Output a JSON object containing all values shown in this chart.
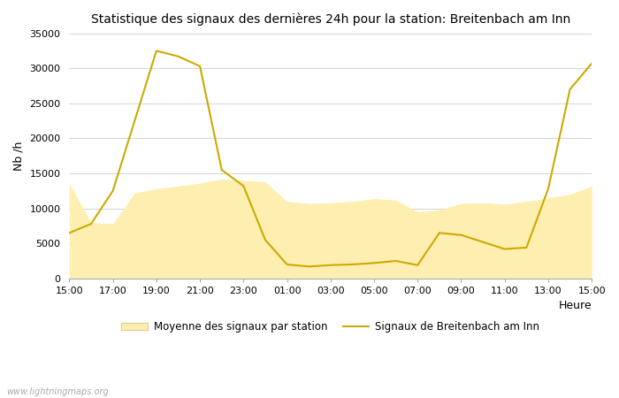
{
  "title": "Statistique des signaux des dernières 24h pour la station: Breitenbach am Inn",
  "xlabel": "Heure",
  "ylabel": "Nb /h",
  "ylim": [
    0,
    35000
  ],
  "yticks": [
    0,
    5000,
    10000,
    15000,
    20000,
    25000,
    30000,
    35000
  ],
  "background_color": "#ffffff",
  "watermark": "www.lightningmaps.org",
  "legend_avg": "Moyenne des signaux par station",
  "legend_station": "Signaux de Breitenbach am Inn",
  "fill_color": "#feeeb0",
  "line_color": "#ccaa00",
  "x_labels": [
    "15:00",
    "17:00",
    "19:00",
    "21:00",
    "23:00",
    "01:00",
    "03:00",
    "05:00",
    "07:00",
    "09:00",
    "11:00",
    "13:00",
    "15:00"
  ],
  "hours_from_15": [
    0,
    1,
    2,
    3,
    4,
    5,
    6,
    7,
    8,
    9,
    10,
    11,
    12,
    13,
    14,
    15,
    16,
    17,
    18,
    19,
    20,
    21,
    22,
    23,
    24
  ],
  "station_y": [
    6500,
    7800,
    12500,
    22500,
    32500,
    31700,
    30300,
    15500,
    13200,
    5500,
    2000,
    1700,
    1900,
    2000,
    2200,
    2500,
    1900,
    6500,
    6200,
    5200,
    4200,
    4400,
    12800,
    27000,
    30700
  ],
  "avg_y": [
    13500,
    8000,
    7800,
    12200,
    12800,
    13200,
    13600,
    14200,
    14000,
    13800,
    11000,
    10700,
    10800,
    11000,
    11400,
    11200,
    9500,
    9800,
    10700,
    10800,
    10600,
    11000,
    11500,
    12000,
    13200
  ],
  "figsize": [
    7.0,
    4.5
  ],
  "dpi": 100
}
